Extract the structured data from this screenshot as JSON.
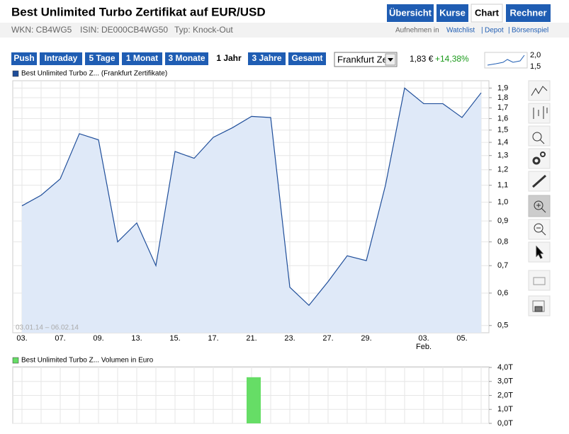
{
  "header": {
    "title": "Best Unlimited Turbo Zertifikat auf EUR/USD",
    "info": [
      "WKN: CB4WG5",
      "ISIN: DE000CB4WG50",
      "Typ: Knock-Out"
    ],
    "tabs": [
      "Übersicht",
      "Kurse",
      "Chart",
      "Rechner"
    ],
    "active_tab": 2,
    "links_prefix": "Aufnehmen in",
    "links": [
      "Watchlist",
      "Depot",
      "Börsenspiel"
    ]
  },
  "toolbar": {
    "ranges": [
      "Push",
      "Intraday",
      "5 Tage",
      "1 Monat",
      "3 Monate",
      "1 Jahr",
      "3 Jahre",
      "Gesamt"
    ],
    "active_range": 5,
    "exchange": "Frankfurt Ze",
    "price": "1,83 €",
    "change": "+14,38%",
    "mini_ticks": [
      "2,0",
      "1,5"
    ]
  },
  "chart_data": [
    {
      "type": "area",
      "legend": "Best Unlimited Turbo Z... (Frankfurt Zertifikate)",
      "date_range": "03.01.14 – 06.02.14",
      "color": "#1f4e9a",
      "fill": "#dfe9f8",
      "log_scale": true,
      "grid": true,
      "categories": [
        "03.",
        null,
        "07.",
        null,
        "09.",
        null,
        "13.",
        null,
        "15.",
        null,
        "17.",
        null,
        "21.",
        null,
        "23.",
        null,
        "27.",
        null,
        "29.",
        null,
        null,
        "03.",
        null,
        "05.",
        null
      ],
      "month_label": "Feb.",
      "month_label_at": 21,
      "values": [
        0.98,
        1.04,
        1.14,
        1.47,
        1.42,
        0.8,
        0.89,
        0.7,
        1.33,
        1.28,
        1.44,
        1.52,
        1.62,
        1.61,
        0.62,
        0.56,
        0.64,
        0.74,
        0.72,
        1.1,
        1.9,
        1.74,
        1.74,
        1.61,
        1.85
      ],
      "ylim": [
        0.48,
        1.98
      ],
      "yticks": [
        {
          "value": 0.5,
          "label": "0,5"
        },
        {
          "value": 0.6,
          "label": "0,6"
        },
        {
          "value": 0.7,
          "label": "0,7"
        },
        {
          "value": 0.8,
          "label": "0,8"
        },
        {
          "value": 0.9,
          "label": "0,9"
        },
        {
          "value": 1.0,
          "label": "1,0"
        },
        {
          "value": 1.1,
          "label": "1,1"
        },
        {
          "value": 1.2,
          "label": "1,2"
        },
        {
          "value": 1.3,
          "label": "1,3"
        },
        {
          "value": 1.4,
          "label": "1,4"
        },
        {
          "value": 1.5,
          "label": "1,5"
        },
        {
          "value": 1.6,
          "label": "1,6"
        },
        {
          "value": 1.7,
          "label": "1,7"
        },
        {
          "value": 1.8,
          "label": "1,8"
        },
        {
          "value": 1.9,
          "label": "1,9"
        }
      ]
    },
    {
      "type": "bar",
      "legend": "Best Unlimited Turbo Z... Volumen in Euro",
      "color": "#66dd66",
      "grid": true,
      "values": [
        null,
        null,
        null,
        null,
        null,
        null,
        null,
        null,
        null,
        null,
        null,
        null,
        3.3,
        null,
        null,
        null,
        null,
        null,
        null,
        null,
        null,
        null,
        null,
        null,
        null
      ],
      "ylim": [
        0,
        4.05
      ],
      "yticks": [
        {
          "value": 0,
          "label": "0,0T"
        },
        {
          "value": 1,
          "label": "1,0T"
        },
        {
          "value": 2,
          "label": "2,0T"
        },
        {
          "value": 3,
          "label": "3,0T"
        },
        {
          "value": 4,
          "label": "4,0T"
        }
      ]
    }
  ]
}
